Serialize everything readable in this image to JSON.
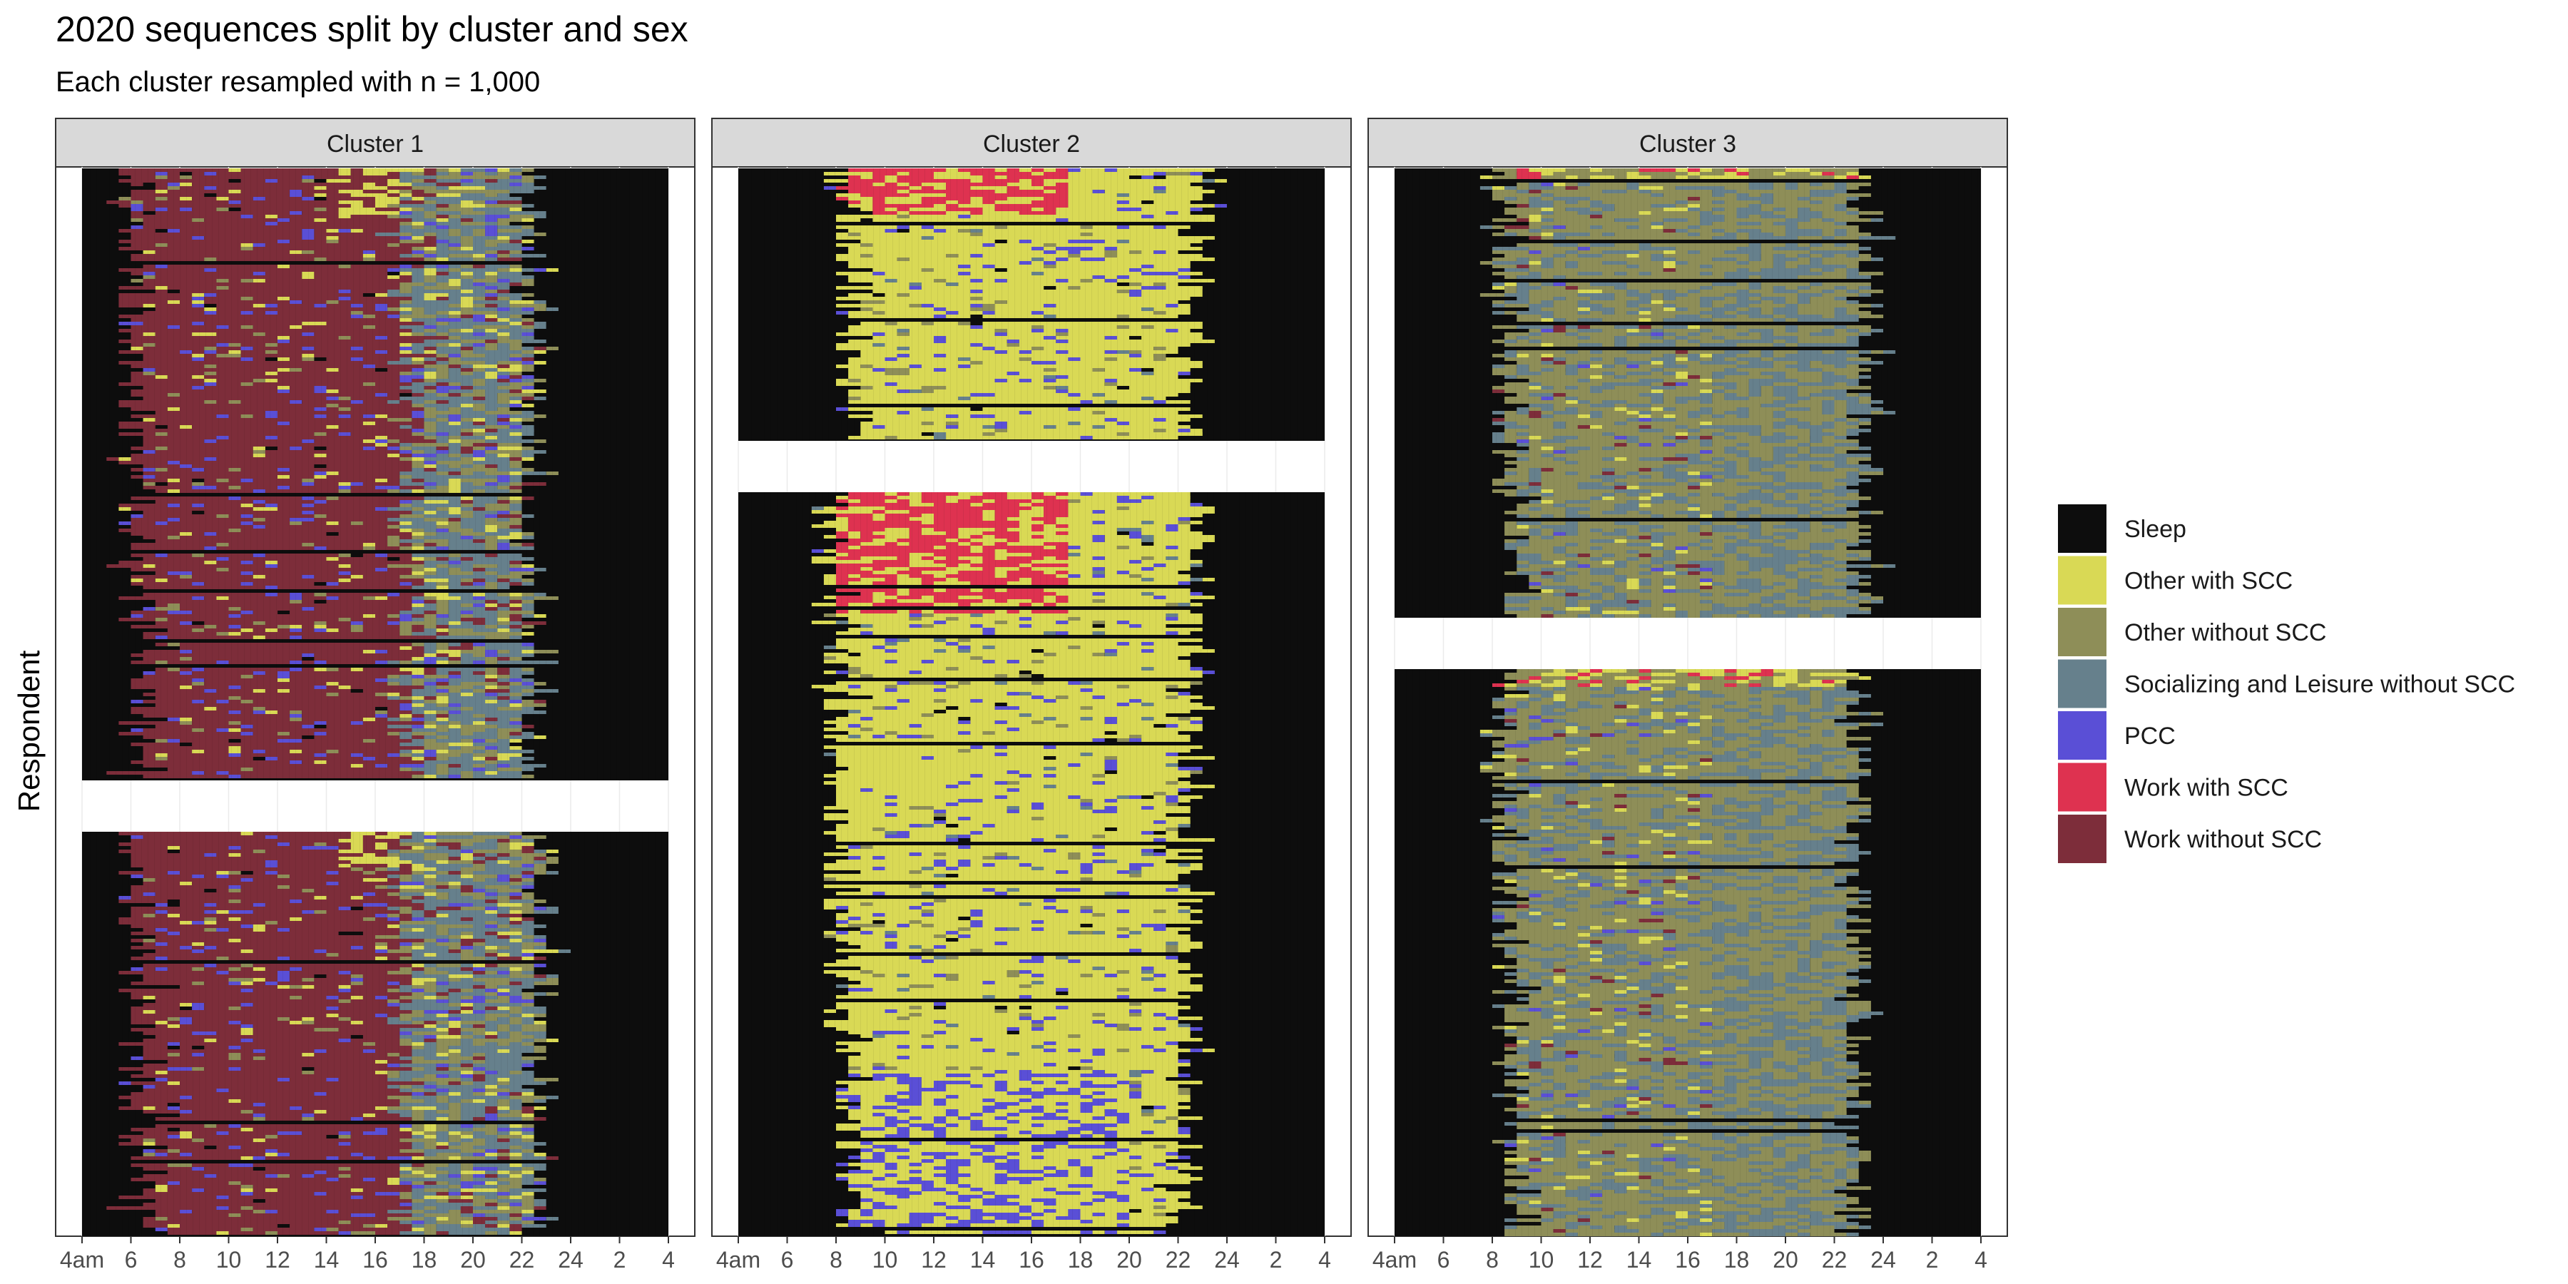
{
  "chart_data": {
    "type": "sequence-index-plot",
    "title": "2020 sequences split by cluster and sex",
    "subtitle": "Each cluster resampled with n = 1,000",
    "ylabel": "Respondent",
    "xlabel": "",
    "x_range_hours": [
      4,
      28
    ],
    "x_ticks": [
      "4am",
      "6",
      "8",
      "10",
      "12",
      "14",
      "16",
      "18",
      "20",
      "22",
      "24",
      "2",
      "4"
    ],
    "panels": [
      {
        "label": "Cluster 1",
        "groups": [
          {
            "name": "top",
            "dominant_state": "Work without SCC",
            "start_hour": 5.2,
            "work_end_hour": 17.3,
            "evening_state": "Socializing and Leisure without SCC",
            "sleep_hour": 22.5
          },
          {
            "name": "bottom",
            "dominant_state": "Work without SCC",
            "start_hour": 5.4,
            "work_end_hour": 17.0,
            "evening_state": "Socializing and Leisure without SCC",
            "sleep_hour": 22.8
          }
        ]
      },
      {
        "label": "Cluster 2",
        "groups": [
          {
            "name": "top",
            "dominant_state": "Other with SCC",
            "start_hour": 7.5,
            "work_state": "Work with SCC",
            "sleep_hour": 23.0
          },
          {
            "name": "bottom",
            "dominant_state": "Other with SCC",
            "start_hour": 7.0,
            "work_state": "Work with SCC",
            "secondary_state": "PCC",
            "sleep_hour": 22.8
          }
        ]
      },
      {
        "label": "Cluster 3",
        "groups": [
          {
            "name": "top",
            "dominant_state": "Other without SCC",
            "start_hour": 7.5,
            "evening_state": "Socializing and Leisure without SCC",
            "sleep_hour": 23.3
          },
          {
            "name": "bottom",
            "dominant_state": "Other without SCC",
            "start_hour": 7.5,
            "evening_state": "Socializing and Leisure without SCC",
            "sleep_hour": 23.0
          }
        ]
      }
    ],
    "legend": [
      {
        "label": "Sleep",
        "color": "#0d0d0d"
      },
      {
        "label": "Other with SCC",
        "color": "#d9d955"
      },
      {
        "label": "Other without SCC",
        "color": "#8e8e58"
      },
      {
        "label": "Socializing and Leisure without SCC",
        "color": "#66808c"
      },
      {
        "label": "PCC",
        "color": "#5a4fd6"
      },
      {
        "label": "Work with SCC",
        "color": "#de3250"
      },
      {
        "label": "Work without SCC",
        "color": "#7d2d3a"
      }
    ],
    "legend_position": "right"
  }
}
